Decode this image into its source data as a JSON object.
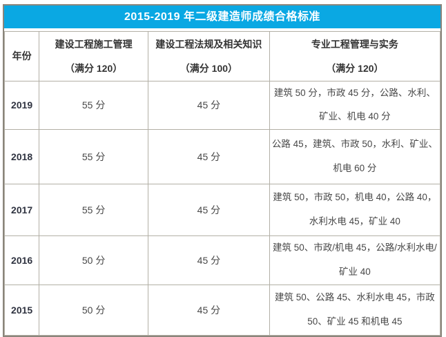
{
  "title": "2015-2019 年二级建造师成绩合格标准",
  "colors": {
    "title_bg": "#0AA8E3",
    "title_text": "#FFFFFF",
    "outer_border": "#8A857B",
    "inner_border": "#B2AFA5",
    "header_text": "#333333",
    "body_text": "#474747"
  },
  "table": {
    "columns": [
      {
        "label": "年份",
        "sub": ""
      },
      {
        "label": "建设工程施工管理",
        "sub": "（满分 120）"
      },
      {
        "label": "建设工程法规及相关知识",
        "sub": "（满分 100）"
      },
      {
        "label": "专业工程管理与实务",
        "sub": "（满分 120）"
      }
    ],
    "rows": [
      {
        "year": "2019",
        "management": "55 分",
        "laws": "45 分",
        "practice": "建筑 50 分，市政 45 分，公路、水利、矿业、机电 40 分"
      },
      {
        "year": "2018",
        "management": "55 分",
        "laws": "45 分",
        "practice": "公路 45，建筑、市政 50，水利、矿业、机电 60 分"
      },
      {
        "year": "2017",
        "management": "55 分",
        "laws": "45 分",
        "practice": "建筑 50，市政 50，机电 40，公路 40，水利水电 45，矿业 40"
      },
      {
        "year": "2016",
        "management": "50 分",
        "laws": "45 分",
        "practice": "建筑 50、市政/机电 45，公路/水利水电/矿业 40"
      },
      {
        "year": "2015",
        "management": "50 分",
        "laws": "45 分",
        "practice": "建筑 50、公路 45、水利水电 45，市政 50、矿业 45 和机电 45"
      }
    ]
  }
}
